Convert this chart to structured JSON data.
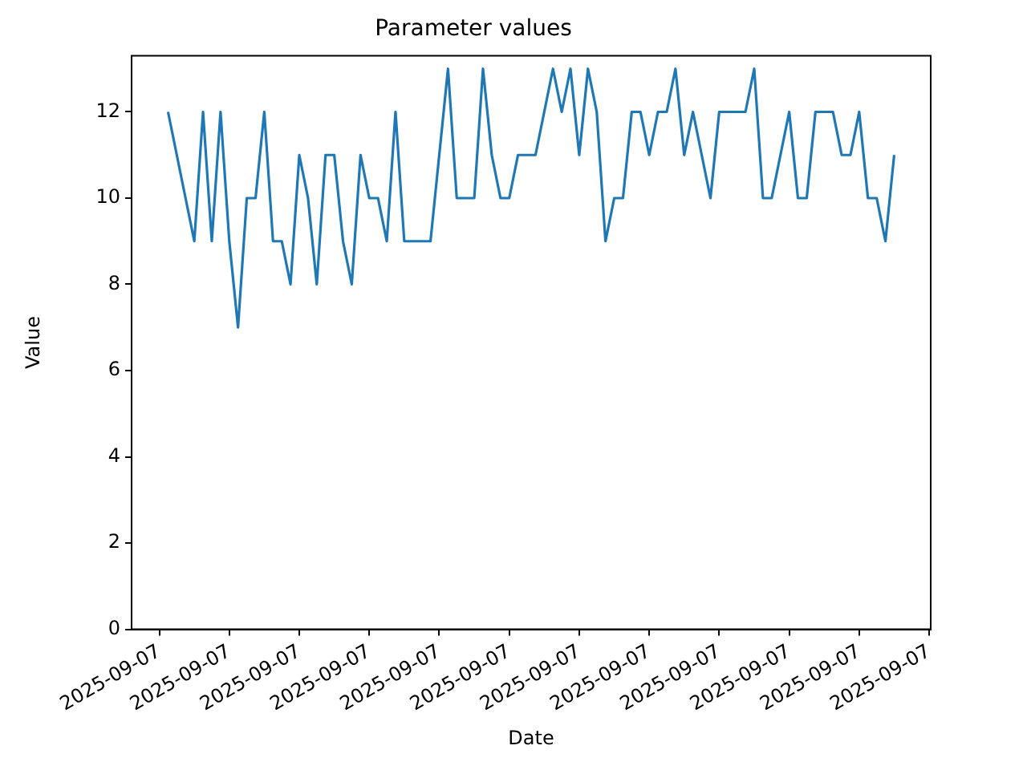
{
  "chart_data": {
    "type": "line",
    "title": "Parameter values",
    "xlabel": "Date",
    "ylabel": "Value",
    "categories": [
      "2025-09-07",
      null,
      null,
      null,
      null,
      null,
      null,
      null,
      "2025-09-07",
      null,
      null,
      null,
      null,
      null,
      null,
      null,
      "2025-09-07",
      null,
      null,
      null,
      null,
      null,
      null,
      null,
      "2025-09-07",
      null,
      null,
      null,
      null,
      null,
      null,
      null,
      "2025-09-07",
      null,
      null,
      null,
      null,
      null,
      null,
      null,
      "2025-09-07",
      null,
      null,
      null,
      null,
      null,
      null,
      null,
      "2025-09-07",
      null,
      null,
      null,
      null,
      null,
      null,
      null,
      "2025-09-07",
      null,
      null,
      null,
      null,
      null,
      null,
      null,
      "2025-09-07",
      null,
      null,
      null,
      null,
      null,
      null,
      null,
      "2025-09-07",
      null,
      null,
      null,
      null,
      null,
      null,
      null,
      "2025-09-07",
      null,
      null,
      null,
      null,
      null,
      null,
      null,
      "2025-09-07"
    ],
    "series": [
      {
        "color": "#1f77b4",
        "values": [
          null,
          12,
          11,
          10,
          9,
          12,
          9,
          12,
          9,
          7,
          10,
          10,
          12,
          9,
          9,
          8,
          11,
          10,
          8,
          11,
          11,
          9,
          8,
          11,
          10,
          10,
          9,
          12,
          9,
          9,
          9,
          9,
          11,
          13,
          10,
          10,
          10,
          13,
          11,
          10,
          10,
          11,
          11,
          11,
          12,
          13,
          12,
          13,
          11,
          13,
          12,
          9,
          10,
          10,
          12,
          12,
          11,
          12,
          12,
          13,
          11,
          12,
          11,
          10,
          12,
          12,
          12,
          12,
          13,
          10,
          10,
          11,
          12,
          10,
          10,
          12,
          12,
          12,
          11,
          11,
          12,
          10,
          10,
          9,
          11,
          null,
          null,
          null,
          null
        ]
      }
    ],
    "ylim": [
      0,
      13.3
    ],
    "yticks": [
      0,
      2,
      4,
      6,
      8,
      10,
      12
    ],
    "grid": false,
    "legend": false,
    "marker": "none",
    "line_style": "solid"
  }
}
